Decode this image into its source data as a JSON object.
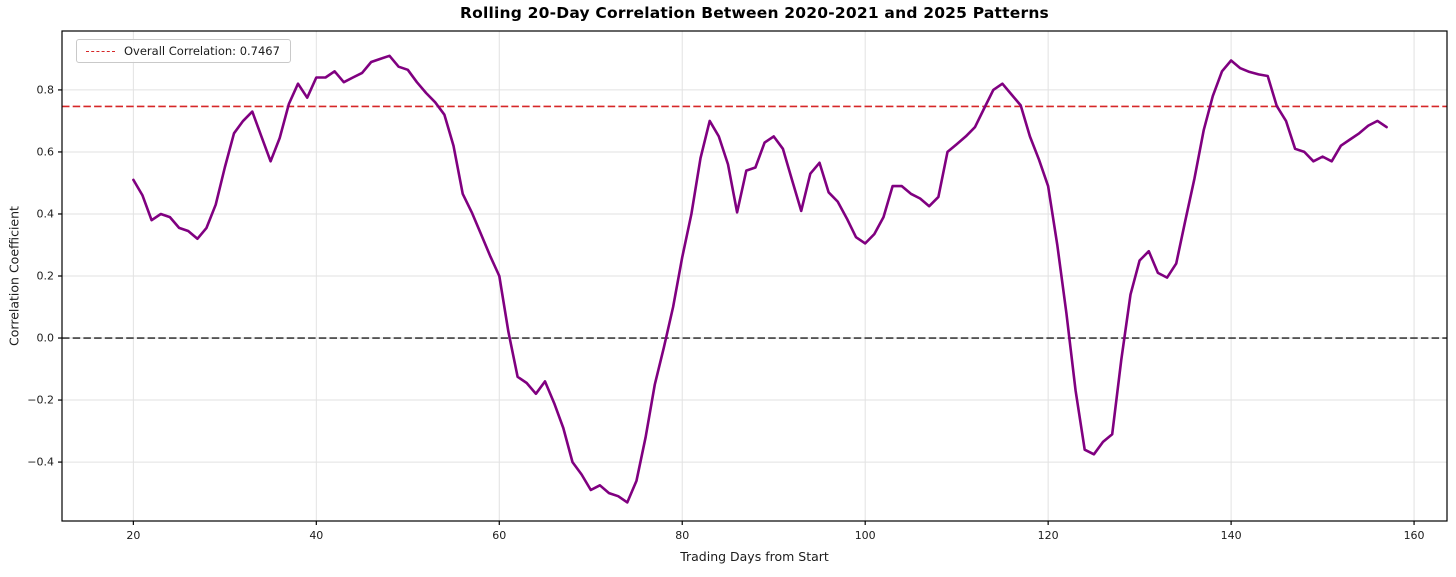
{
  "chart_data": {
    "type": "line",
    "title": "Rolling 20-Day Correlation Between 2020-2021 and 2025 Patterns",
    "xlabel": "Trading Days from Start",
    "ylabel": "Correlation Coefficient",
    "xlim": [
      12.2,
      163.6
    ],
    "ylim": [
      -0.59,
      0.99
    ],
    "grid": true,
    "legend_position": "upper left",
    "x_ticks": [
      20,
      40,
      60,
      80,
      100,
      120,
      140,
      160
    ],
    "x_tick_labels": [
      "20",
      "40",
      "60",
      "80",
      "100",
      "120",
      "140",
      "160"
    ],
    "y_ticks": [
      -0.4,
      -0.2,
      0.0,
      0.2,
      0.4,
      0.6,
      0.8
    ],
    "y_tick_labels": [
      "−0.4",
      "−0.2",
      "0.0",
      "0.2",
      "0.4",
      "0.6",
      "0.8"
    ],
    "series": [
      {
        "name": "rolling-20-day-correlation",
        "color": "#800080",
        "line_width": 2.6,
        "x_start": 20,
        "x_step": 1,
        "values": [
          0.51,
          0.46,
          0.38,
          0.4,
          0.39,
          0.355,
          0.345,
          0.32,
          0.355,
          0.43,
          0.55,
          0.66,
          0.7,
          0.73,
          0.65,
          0.57,
          0.645,
          0.755,
          0.82,
          0.775,
          0.84,
          0.84,
          0.86,
          0.825,
          0.84,
          0.855,
          0.89,
          0.9,
          0.91,
          0.875,
          0.865,
          0.825,
          0.79,
          0.76,
          0.72,
          0.62,
          0.465,
          0.405,
          0.335,
          0.265,
          0.2,
          0.02,
          -0.125,
          -0.145,
          -0.18,
          -0.14,
          -0.21,
          -0.29,
          -0.4,
          -0.44,
          -0.49,
          -0.475,
          -0.5,
          -0.51,
          -0.53,
          -0.46,
          -0.32,
          -0.15,
          -0.03,
          0.1,
          0.26,
          0.4,
          0.58,
          0.7,
          0.65,
          0.56,
          0.405,
          0.54,
          0.55,
          0.63,
          0.65,
          0.61,
          0.51,
          0.41,
          0.53,
          0.565,
          0.47,
          0.44,
          0.385,
          0.325,
          0.305,
          0.335,
          0.39,
          0.49,
          0.49,
          0.465,
          0.45,
          0.425,
          0.455,
          0.6,
          0.625,
          0.65,
          0.68,
          0.74,
          0.8,
          0.82,
          0.785,
          0.75,
          0.65,
          0.575,
          0.49,
          0.3,
          0.08,
          -0.17,
          -0.36,
          -0.375,
          -0.335,
          -0.31,
          -0.07,
          0.14,
          0.25,
          0.28,
          0.21,
          0.195,
          0.24,
          0.38,
          0.515,
          0.67,
          0.78,
          0.86,
          0.895,
          0.87,
          0.858,
          0.85,
          0.845,
          0.748,
          0.7,
          0.61,
          0.6,
          0.57,
          0.585,
          0.57,
          0.62,
          0.64,
          0.66,
          0.685,
          0.7,
          0.68
        ]
      }
    ],
    "reference_lines": [
      {
        "name": "overall-correlation-line",
        "value": 0.7467,
        "color": "#d62728",
        "style": "dashed",
        "legend_label": "Overall Correlation: 0.7467"
      },
      {
        "name": "zero-line",
        "value": 0.0,
        "color": "#3d3d3d",
        "style": "dashed"
      }
    ]
  },
  "colors": {
    "background": "#ffffff",
    "grid": "#e2e2e2",
    "spine": "#000000",
    "text": "#1c1c1c"
  }
}
